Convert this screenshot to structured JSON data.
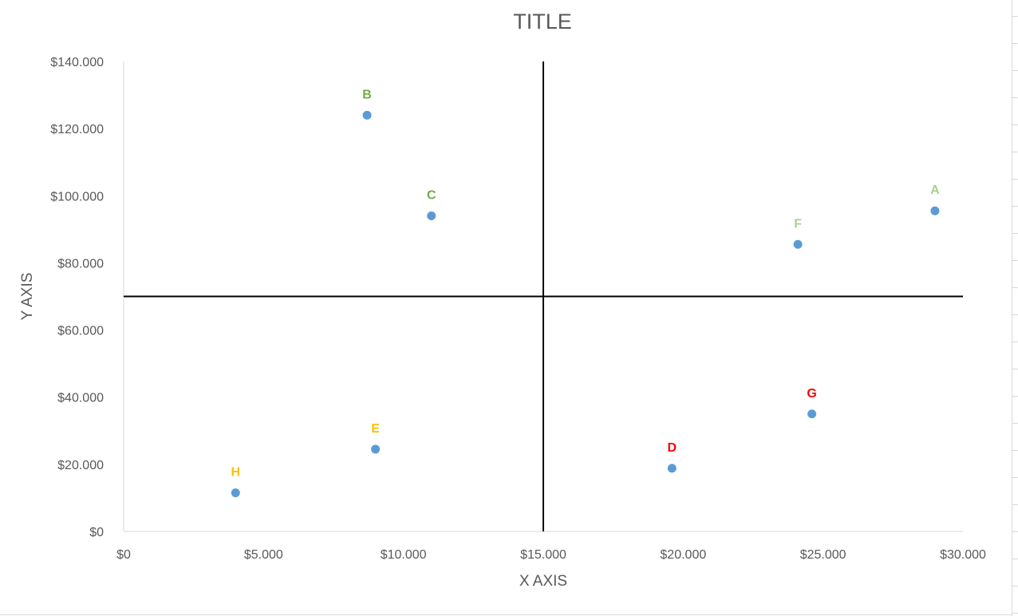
{
  "chart_data": {
    "type": "scatter",
    "title": "TITLE",
    "xlabel": "X AXIS",
    "ylabel": "Y AXIS",
    "xlim": [
      0,
      30000
    ],
    "ylim": [
      0,
      140000
    ],
    "x_ticks": [
      0,
      5000,
      10000,
      15000,
      20000,
      25000,
      30000
    ],
    "x_tick_labels": [
      "$0",
      "$5.000",
      "$10.000",
      "$15.000",
      "$20.000",
      "$25.000",
      "$30.000"
    ],
    "y_ticks": [
      0,
      20000,
      40000,
      60000,
      80000,
      100000,
      120000,
      140000
    ],
    "y_tick_labels": [
      "$0",
      "$20.000",
      "$40.000",
      "$60.000",
      "$80.000",
      "$100.000",
      "$120.000",
      "$140.000"
    ],
    "grid": false,
    "marker_color": "#5b9bd5",
    "quadrant_lines": {
      "x": 15000,
      "y": 70000,
      "color": "#000000"
    },
    "points": [
      {
        "label": "A",
        "x": 29000,
        "y": 95500,
        "label_color": "#a9d18e"
      },
      {
        "label": "B",
        "x": 8700,
        "y": 124000,
        "label_color": "#70ad47"
      },
      {
        "label": "C",
        "x": 11000,
        "y": 94000,
        "label_color": "#70ad47"
      },
      {
        "label": "D",
        "x": 19600,
        "y": 18800,
        "label_color": "#ff0000"
      },
      {
        "label": "E",
        "x": 9000,
        "y": 24500,
        "label_color": "#ffc000"
      },
      {
        "label": "F",
        "x": 24100,
        "y": 85500,
        "label_color": "#a9d18e"
      },
      {
        "label": "G",
        "x": 24600,
        "y": 35000,
        "label_color": "#ff0000"
      },
      {
        "label": "H",
        "x": 4000,
        "y": 11500,
        "label_color": "#ffc000"
      }
    ]
  }
}
